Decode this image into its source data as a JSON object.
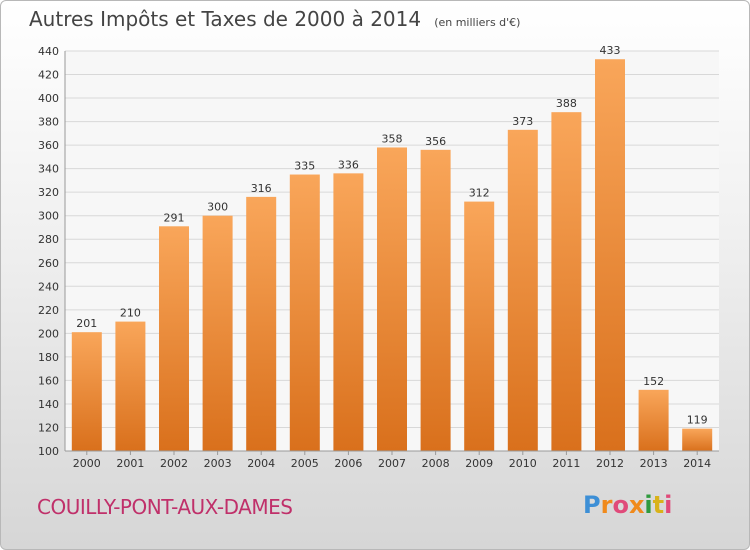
{
  "header": {
    "title": "Autres Impôts et Taxes de 2000 à 2014",
    "unit": "(en milliers d'€)"
  },
  "footer": {
    "city": "COUILLY-PONT-AUX-DAMES",
    "logo": "Proxiti"
  },
  "colors": {
    "bar_light": "#f9a65a",
    "bar_dark": "#d9701c",
    "grid": "#d8d8d8",
    "city": "#c0306a"
  },
  "chart_data": {
    "type": "bar",
    "categories": [
      "2000",
      "2001",
      "2002",
      "2003",
      "2004",
      "2005",
      "2006",
      "2007",
      "2008",
      "2009",
      "2010",
      "2011",
      "2012",
      "2013",
      "2014"
    ],
    "values": [
      201,
      210,
      291,
      300,
      316,
      335,
      336,
      358,
      356,
      312,
      373,
      388,
      433,
      152,
      119
    ],
    "title": "Autres Impôts et Taxes de 2000 à 2014",
    "xlabel": "",
    "ylabel": "",
    "ylim": [
      100,
      440
    ],
    "yticks": [
      100,
      120,
      140,
      160,
      180,
      200,
      220,
      240,
      260,
      280,
      300,
      320,
      340,
      360,
      380,
      400,
      420,
      440
    ],
    "grid": true,
    "data_labels": true
  }
}
